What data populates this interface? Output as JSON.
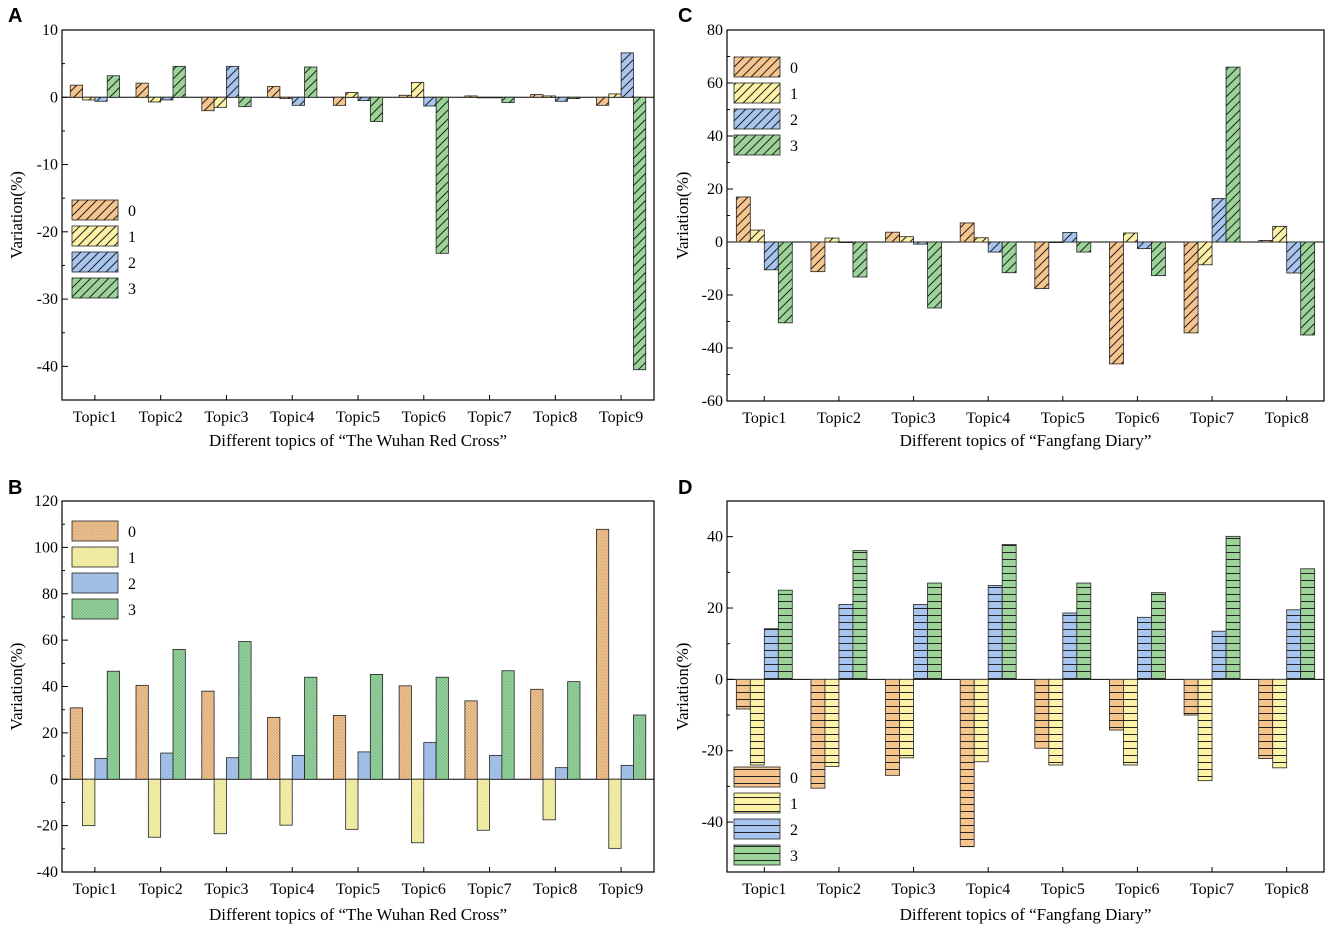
{
  "figure": {
    "colors": {
      "0": "#f6c58e",
      "1": "#fdf3a6",
      "2": "#a7c5ee",
      "3": "#9bd399"
    },
    "pattern_colors": {
      "B": {
        "0": "#c9a27a",
        "1": "#dadb9c",
        "2": "#95b2d6",
        "3": "#6fb88a"
      }
    }
  },
  "chart_data": [
    {
      "id": "A",
      "panel_label": "A",
      "type": "bar",
      "pattern": "diagonal",
      "ylabel": "Variation(%)",
      "xlabel": "Different topics of “The Wuhan Red Cross”",
      "ylim": [
        -45,
        10
      ],
      "yticks": [
        10,
        0,
        -10,
        -20,
        -30,
        -40
      ],
      "legend_position": "left-middle",
      "categories": [
        "Topic1",
        "Topic2",
        "Topic3",
        "Topic4",
        "Topic5",
        "Topic6",
        "Topic7",
        "Topic8",
        "Topic9"
      ],
      "series": [
        {
          "name": "0",
          "values": [
            1.8,
            2.1,
            -2.0,
            1.6,
            -1.2,
            0.3,
            0.2,
            0.4,
            -1.2
          ]
        },
        {
          "name": "1",
          "values": [
            -0.4,
            -0.7,
            -1.5,
            -0.2,
            0.7,
            2.2,
            0.0,
            0.2,
            0.5
          ]
        },
        {
          "name": "2",
          "values": [
            -0.6,
            -0.4,
            4.6,
            -1.2,
            -0.5,
            -1.3,
            0.0,
            -0.6,
            6.6
          ]
        },
        {
          "name": "3",
          "values": [
            3.2,
            4.6,
            -1.4,
            4.5,
            -3.6,
            -23.2,
            -0.8,
            -0.2,
            -40.5
          ]
        }
      ]
    },
    {
      "id": "B",
      "panel_label": "B",
      "type": "bar",
      "pattern": "dotted",
      "ylabel": "Variation(%)",
      "xlabel": "Different topics of “The Wuhan Red Cross”",
      "ylim": [
        -40,
        120
      ],
      "yticks": [
        120,
        100,
        80,
        60,
        40,
        20,
        0,
        -20,
        -40
      ],
      "legend_position": "top-left",
      "categories": [
        "Topic1",
        "Topic2",
        "Topic3",
        "Topic4",
        "Topic5",
        "Topic6",
        "Topic7",
        "Topic8",
        "Topic9"
      ],
      "series": [
        {
          "name": "0",
          "values": [
            30.8,
            40.5,
            38.0,
            26.7,
            27.5,
            40.3,
            33.8,
            38.8,
            107.8
          ]
        },
        {
          "name": "1",
          "values": [
            -20.0,
            -25.0,
            -23.5,
            -19.8,
            -21.6,
            -27.4,
            -22.0,
            -17.5,
            -29.8
          ]
        },
        {
          "name": "2",
          "values": [
            9.0,
            11.3,
            9.3,
            10.3,
            11.8,
            15.8,
            10.3,
            5.0,
            6.0
          ]
        },
        {
          "name": "3",
          "values": [
            46.6,
            56.0,
            59.4,
            44.0,
            45.2,
            44.0,
            46.8,
            42.1,
            27.7
          ]
        }
      ]
    },
    {
      "id": "C",
      "panel_label": "C",
      "type": "bar",
      "pattern": "diagonal",
      "ylabel": "Variation(%)",
      "xlabel": "Different topics of “Fangfang Diary”",
      "ylim": [
        -60,
        80
      ],
      "yticks": [
        80,
        60,
        40,
        20,
        0,
        -20,
        -40,
        -60
      ],
      "legend_position": "top-left",
      "categories": [
        "Topic1",
        "Topic2",
        "Topic3",
        "Topic4",
        "Topic5",
        "Topic6",
        "Topic7",
        "Topic8"
      ],
      "series": [
        {
          "name": "0",
          "values": [
            17.0,
            -11.2,
            3.7,
            7.2,
            -17.6,
            -46.0,
            -34.3,
            0.6
          ]
        },
        {
          "name": "1",
          "values": [
            4.5,
            1.5,
            2.0,
            1.6,
            0.0,
            3.4,
            -8.6,
            5.9
          ]
        },
        {
          "name": "2",
          "values": [
            -10.5,
            0.0,
            -0.8,
            -3.8,
            3.6,
            -2.5,
            16.4,
            -11.7
          ]
        },
        {
          "name": "3",
          "values": [
            -30.5,
            -13.2,
            -24.9,
            -11.6,
            -3.8,
            -12.7,
            66.0,
            -35.1
          ]
        }
      ]
    },
    {
      "id": "D",
      "panel_label": "D",
      "type": "bar",
      "pattern": "horizontal",
      "ylabel": "Variation(%)",
      "xlabel": "Different topics of “Fangfang Diary”",
      "ylim": [
        -54,
        50
      ],
      "yticks": [
        40,
        20,
        0,
        -20,
        -40
      ],
      "legend_position": "bottom-left",
      "categories": [
        "Topic1",
        "Topic2",
        "Topic3",
        "Topic4",
        "Topic5",
        "Topic6",
        "Topic7",
        "Topic8"
      ],
      "series": [
        {
          "name": "0",
          "values": [
            -8.3,
            -30.5,
            -26.9,
            -46.9,
            -19.3,
            -14.2,
            -10.0,
            -22.2
          ]
        },
        {
          "name": "1",
          "values": [
            -24.0,
            -24.4,
            -22.0,
            -23.1,
            -24.0,
            -24.0,
            -28.4,
            -24.8
          ]
        },
        {
          "name": "2",
          "values": [
            14.2,
            21.0,
            21.0,
            26.3,
            18.6,
            17.4,
            13.5,
            19.5
          ]
        },
        {
          "name": "3",
          "values": [
            25.0,
            36.1,
            27.0,
            37.8,
            27.0,
            24.3,
            40.1,
            31.0
          ]
        }
      ]
    }
  ]
}
